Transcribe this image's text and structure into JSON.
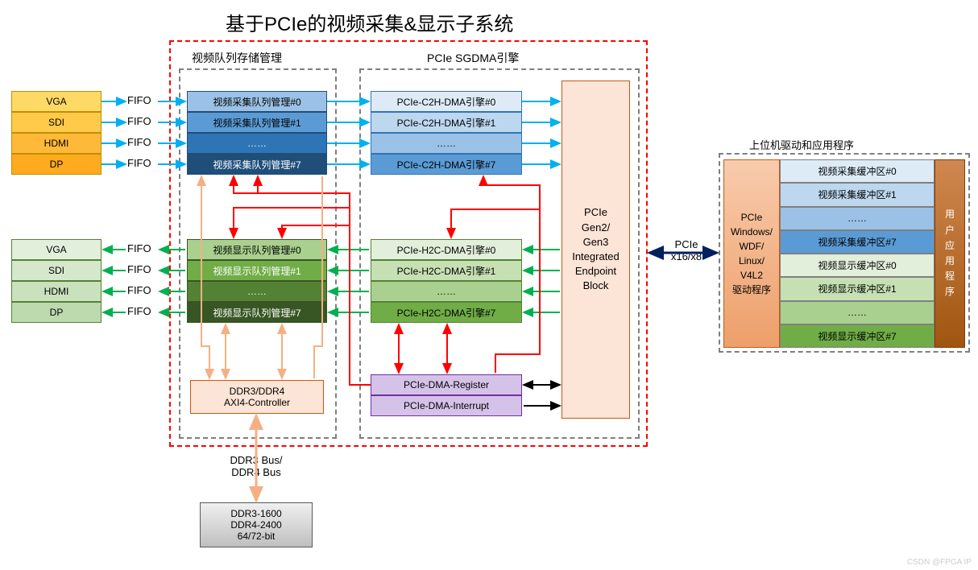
{
  "title": "基于PCIe的视频采集&显示子系统",
  "watermark": "CSDN @FPGA IP",
  "left_inputs": {
    "items": [
      "VGA",
      "SDI",
      "HDMI",
      "DP"
    ],
    "fifo_label": "FIFO",
    "color_fill": [
      "#ffd966",
      "#ffca4a",
      "#ffb938",
      "#ffab1f"
    ],
    "border": "#bf8f00"
  },
  "left_outputs": {
    "items": [
      "VGA",
      "SDI",
      "HDMI",
      "DP"
    ],
    "fifo_label": "FIFO",
    "color_fill": [
      "#e2efda",
      "#d5e8cc",
      "#c9e1bd",
      "#bddaaf"
    ],
    "border": "#548235"
  },
  "red_box": {
    "border_color": "#ff0000"
  },
  "queue_mgmt": {
    "title": "视频队列存储管理",
    "border_color": "#7f7f7f",
    "capture": {
      "items": [
        "视频采集队列管理#0",
        "视频采集队列管理#1",
        "……",
        "视频采集队列管理#7"
      ],
      "colors": [
        "#9bc2e6",
        "#5b9bd5",
        "#2e75b6",
        "#1f4e79"
      ],
      "text_colors": [
        "#000",
        "#000",
        "#fff",
        "#fff"
      ]
    },
    "display": {
      "items": [
        "视频显示队列管理#0",
        "视频显示队列管理#1",
        "……",
        "视频显示队列管理#7"
      ],
      "colors": [
        "#a9d08e",
        "#70ad47",
        "#548235",
        "#375623"
      ],
      "text_colors": [
        "#000",
        "#fff",
        "#fff",
        "#fff"
      ]
    }
  },
  "dma_engine": {
    "title": "PCIe SGDMA引擎",
    "border_color": "#7f7f7f",
    "c2h": {
      "items": [
        "PCIe-C2H-DMA引擎#0",
        "PCIe-C2H-DMA引擎#1",
        "……",
        "PCIe-C2H-DMA引擎#7"
      ],
      "colors": [
        "#deebf7",
        "#bdd7ee",
        "#9bc2e6",
        "#5b9bd5"
      ],
      "text_colors": [
        "#000",
        "#000",
        "#000",
        "#000"
      ]
    },
    "h2c": {
      "items": [
        "PCIe-H2C-DMA引擎#0",
        "PCIe-H2C-DMA引擎#1",
        "……",
        "PCIe-H2C-DMA引擎#7"
      ],
      "colors": [
        "#e2efda",
        "#c6e0b4",
        "#a9d08e",
        "#70ad47"
      ],
      "text_colors": [
        "#000",
        "#000",
        "#000",
        "#000"
      ]
    },
    "register": {
      "label": "PCIe-DMA-Register",
      "color": "#d5c2e8",
      "border": "#7030a0"
    },
    "interrupt": {
      "label": "PCIe-DMA-Interrupt",
      "color": "#d5c2e8",
      "border": "#7030a0"
    }
  },
  "endpoint": {
    "label": "PCIe\nGen2/\nGen3\nIntegrated\nEndpoint\nBlock",
    "color": "#fce4d6",
    "border": "#c65911"
  },
  "pcie_link": {
    "label": "PCIe\nx16/x8"
  },
  "ddr_ctrl": {
    "label": "DDR3/DDR4\nAXI4-Controller",
    "color": "#fce4d6",
    "border": "#c65911"
  },
  "ddr_bus": {
    "label": "DDR3 Bus/\nDDR4 Bus"
  },
  "ddr_mem": {
    "label": "DDR3-1600\nDDR4-2400\n64/72-bit",
    "color": "#d9d9d9",
    "border": "#595959"
  },
  "host": {
    "title": "上位机驱动和应用程序",
    "border_color": "#7f7f7f",
    "driver": {
      "label": "PCIe\nWindows/\nWDF/\nLinux/\nV4L2\n驱动程序",
      "color": "#f4b084",
      "border": "#c65911"
    },
    "app": {
      "label": "用\n户\n应\n用\n程\n序",
      "color": "#c65911",
      "border": "#833c0c",
      "text_color": "#fff"
    },
    "buffers": {
      "items": [
        "视频采集缓冲区#0",
        "视频采集缓冲区#1",
        "……",
        "视频采集缓冲区#7",
        "视频显示缓冲区#0",
        "视频显示缓冲区#1",
        "……",
        "视频显示缓冲区#7"
      ],
      "colors": [
        "#ddebf7",
        "#bdd7ee",
        "#9bc2e6",
        "#5b9bd5",
        "#e2efda",
        "#c6e0b4",
        "#a9d08e",
        "#70ad47"
      ]
    }
  },
  "arrow_colors": {
    "blue": "#00b0f0",
    "green": "#00b050",
    "red": "#ff0000",
    "black": "#000000",
    "tan": "#f4b084",
    "navy": "#002060"
  }
}
